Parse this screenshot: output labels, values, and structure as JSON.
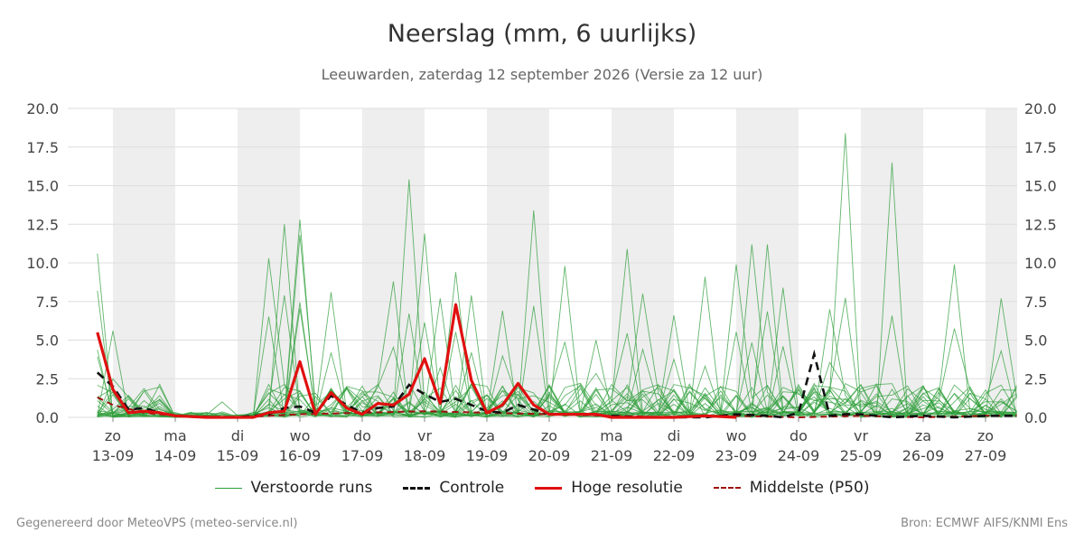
{
  "chart_data": {
    "type": "line",
    "title": "Neerslag (mm, 6 uurlijks)",
    "subtitle": "Leeuwarden, zaterdag 12 september 2026 (Versie za 12 uur)",
    "ylim": [
      0,
      20
    ],
    "yticks": [
      "0.0",
      "2.5",
      "5.0",
      "7.5",
      "10.0",
      "12.5",
      "15.0",
      "17.5",
      "20.0"
    ],
    "xlim_days": [
      13,
      27.5
    ],
    "grid": true,
    "legend_position": "bottom",
    "day_labels": [
      {
        "day": "zo",
        "date": "13-09"
      },
      {
        "day": "ma",
        "date": "14-09"
      },
      {
        "day": "di",
        "date": "15-09"
      },
      {
        "day": "wo",
        "date": "16-09"
      },
      {
        "day": "do",
        "date": "17-09"
      },
      {
        "day": "vr",
        "date": "18-09"
      },
      {
        "day": "za",
        "date": "19-09"
      },
      {
        "day": "zo",
        "date": "20-09"
      },
      {
        "day": "ma",
        "date": "21-09"
      },
      {
        "day": "di",
        "date": "22-09"
      },
      {
        "day": "wo",
        "date": "23-09"
      },
      {
        "day": "do",
        "date": "24-09"
      },
      {
        "day": "vr",
        "date": "25-09"
      },
      {
        "day": "za",
        "date": "26-09"
      },
      {
        "day": "zo",
        "date": "27-09"
      }
    ],
    "weekend_shading_days": [
      13.0,
      15.0,
      17.0,
      19.0,
      21.0,
      23.0,
      25.0,
      27.0
    ],
    "colors": {
      "ensemble": "#2e9e3a",
      "control": "#111111",
      "high_res": "#e01010",
      "median": "#a01010",
      "shade": "#eeeeee",
      "grid": "#dddddd"
    },
    "series": [
      {
        "name": "Controle",
        "x": [
          12.75,
          13.0,
          13.25,
          13.5,
          13.75,
          14.0,
          14.5,
          15.0,
          15.5,
          15.75,
          16.0,
          16.25,
          16.5,
          16.75,
          17.0,
          17.25,
          17.5,
          17.75,
          18.0,
          18.25,
          18.5,
          18.75,
          19.0,
          19.25,
          19.5,
          19.75,
          20.0,
          20.5,
          21.0,
          21.5,
          22.0,
          22.5,
          23.0,
          23.5,
          23.75,
          24.0,
          24.25,
          24.5,
          24.75,
          25.0,
          25.5,
          26.0,
          26.5,
          27.0,
          27.5
        ],
        "values": [
          2.9,
          2.0,
          0.5,
          0.6,
          0.3,
          0.1,
          0.0,
          0.0,
          0.2,
          0.6,
          0.7,
          0.3,
          1.4,
          0.8,
          0.3,
          0.6,
          0.7,
          2.1,
          1.5,
          1.0,
          1.2,
          0.8,
          0.4,
          0.3,
          0.8,
          0.5,
          0.2,
          0.2,
          0.1,
          0.0,
          0.0,
          0.0,
          0.2,
          0.1,
          0.0,
          0.3,
          4.1,
          0.1,
          0.2,
          0.2,
          0.0,
          0.1,
          0.0,
          0.1,
          0.1
        ]
      },
      {
        "name": "Hoge resolutie",
        "x": [
          12.75,
          13.0,
          13.25,
          13.5,
          13.75,
          14.0,
          14.5,
          15.0,
          15.25,
          15.5,
          15.75,
          16.0,
          16.25,
          16.5,
          16.75,
          17.0,
          17.25,
          17.5,
          17.75,
          18.0,
          18.25,
          18.5,
          18.75,
          19.0,
          19.25,
          19.5,
          19.75,
          20.0,
          20.25,
          20.5,
          20.75,
          21.0,
          21.5,
          22.0,
          22.5,
          23.0
        ],
        "values": [
          5.5,
          1.8,
          0.3,
          0.4,
          0.3,
          0.1,
          0.0,
          0.0,
          0.0,
          0.3,
          0.4,
          3.6,
          0.2,
          1.6,
          0.6,
          0.2,
          0.9,
          0.8,
          1.5,
          3.8,
          0.9,
          7.3,
          2.4,
          0.3,
          0.8,
          2.2,
          0.8,
          0.2,
          0.2,
          0.2,
          0.2,
          0.0,
          0.0,
          0.0,
          0.1,
          0.0
        ]
      },
      {
        "name": "Middelste (P50)",
        "x": [
          12.75,
          13.0,
          13.5,
          14.0,
          15.0,
          16.0,
          17.0,
          18.0,
          19.0,
          20.0,
          21.0,
          22.0,
          23.0,
          24.0,
          25.0,
          26.0,
          27.0,
          27.5
        ],
        "values": [
          1.3,
          0.8,
          0.3,
          0.1,
          0.0,
          0.2,
          0.3,
          0.4,
          0.3,
          0.2,
          0.1,
          0.0,
          0.1,
          0.0,
          0.1,
          0.0,
          0.1,
          0.1
        ]
      }
    ],
    "ensemble": {
      "name": "Verstoorde runs",
      "count": 24,
      "peaks": [
        {
          "x": 12.75,
          "value": 10.6
        },
        {
          "x": 12.75,
          "value": 8.2
        },
        {
          "x": 13.0,
          "value": 5.6
        },
        {
          "x": 14.75,
          "value": 1.0
        },
        {
          "x": 15.5,
          "value": 10.3
        },
        {
          "x": 15.75,
          "value": 12.5
        },
        {
          "x": 16.0,
          "value": 12.8
        },
        {
          "x": 16.0,
          "value": 11.8
        },
        {
          "x": 16.5,
          "value": 8.1
        },
        {
          "x": 17.5,
          "value": 8.8
        },
        {
          "x": 17.75,
          "value": 15.4
        },
        {
          "x": 18.0,
          "value": 11.9
        },
        {
          "x": 18.25,
          "value": 7.7
        },
        {
          "x": 18.5,
          "value": 9.4
        },
        {
          "x": 18.75,
          "value": 7.9
        },
        {
          "x": 19.25,
          "value": 6.9
        },
        {
          "x": 19.75,
          "value": 13.4
        },
        {
          "x": 20.25,
          "value": 9.8
        },
        {
          "x": 20.75,
          "value": 5.0
        },
        {
          "x": 21.25,
          "value": 10.9
        },
        {
          "x": 21.5,
          "value": 8.0
        },
        {
          "x": 22.0,
          "value": 6.6
        },
        {
          "x": 22.5,
          "value": 9.1
        },
        {
          "x": 23.0,
          "value": 9.9
        },
        {
          "x": 23.25,
          "value": 11.2
        },
        {
          "x": 23.5,
          "value": 11.2
        },
        {
          "x": 23.75,
          "value": 8.4
        },
        {
          "x": 24.5,
          "value": 7.0
        },
        {
          "x": 24.75,
          "value": 18.4
        },
        {
          "x": 25.5,
          "value": 16.5
        },
        {
          "x": 26.5,
          "value": 9.9
        },
        {
          "x": 27.25,
          "value": 7.7
        }
      ]
    },
    "legend": [
      {
        "label": "Verstoorde runs",
        "style": "ensemble"
      },
      {
        "label": "Controle",
        "style": "control"
      },
      {
        "label": "Hoge resolutie",
        "style": "high_res"
      },
      {
        "label": "Middelste (P50)",
        "style": "median"
      }
    ]
  },
  "footer": {
    "left": "Gegenereerd door MeteoVPS (meteo-service.nl)",
    "right": "Bron: ECMWF AIFS/KNMI Ens"
  }
}
